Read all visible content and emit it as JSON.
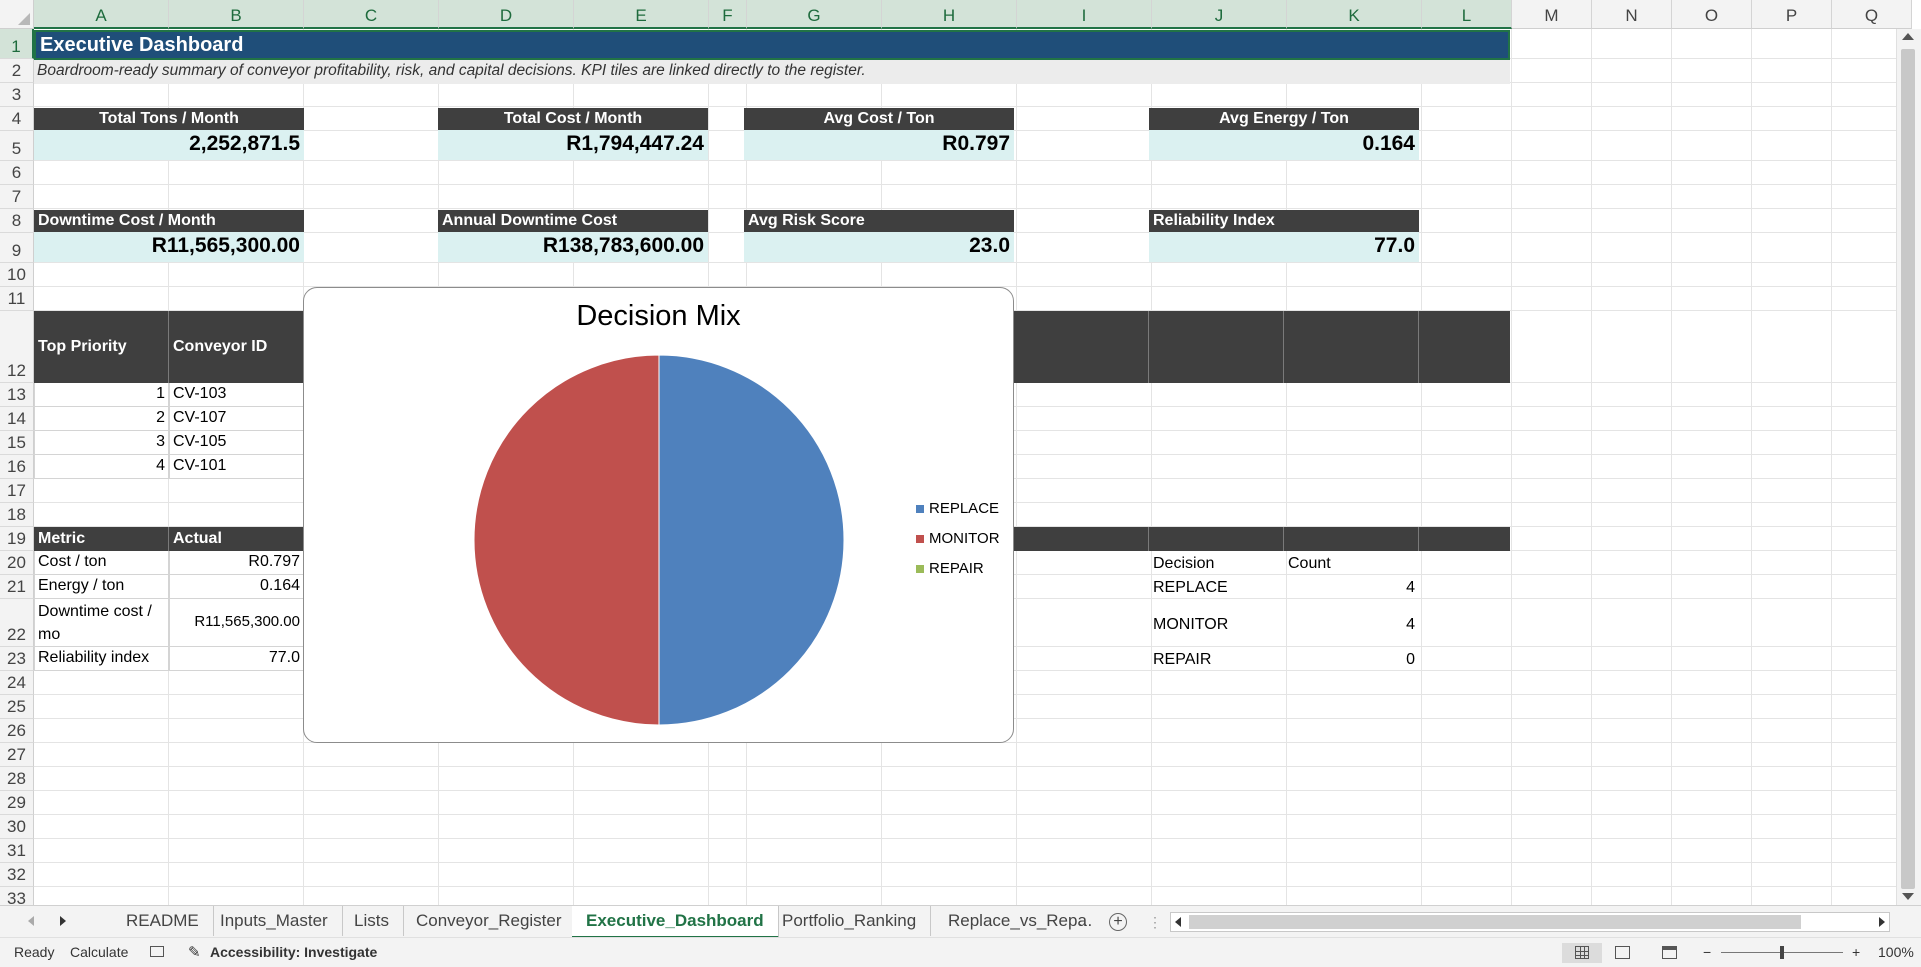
{
  "columns": [
    "A",
    "B",
    "C",
    "D",
    "E",
    "F",
    "G",
    "H",
    "I",
    "J",
    "K",
    "L",
    "M",
    "N",
    "O",
    "P",
    "Q"
  ],
  "rows": [
    "1",
    "2",
    "3",
    "4",
    "5",
    "6",
    "7",
    "8",
    "9",
    "10",
    "11",
    "12",
    "13",
    "14",
    "15",
    "16",
    "17",
    "18",
    "19",
    "20",
    "21",
    "22",
    "23",
    "24",
    "25",
    "26",
    "27",
    "28",
    "29",
    "30",
    "31",
    "32",
    "33"
  ],
  "title": "Executive Dashboard",
  "subtitle": "Boardroom-ready summary of conveyor profitability, risk, and capital decisions. KPI tiles are linked directly to the register.",
  "kpis_row1": [
    {
      "label": "Total Tons / Month",
      "value": "2,252,871.5"
    },
    {
      "label": "Total Cost / Month",
      "value": "R1,794,447.24"
    },
    {
      "label": "Avg Cost / Ton",
      "value": "R0.797"
    },
    {
      "label": "Avg Energy / Ton",
      "value": "0.164"
    }
  ],
  "kpis_row2": [
    {
      "label": "Downtime Cost / Month",
      "value": "R11,565,300.00"
    },
    {
      "label": "Annual Downtime Cost",
      "value": "R138,783,600.00"
    },
    {
      "label": "Avg Risk Score",
      "value": "23.0"
    },
    {
      "label": "Reliability Index",
      "value": "77.0"
    }
  ],
  "priority_table": {
    "headers": [
      "Top Priority",
      "Conveyor ID"
    ],
    "rows": [
      [
        "1",
        "CV-103"
      ],
      [
        "2",
        "CV-107"
      ],
      [
        "3",
        "CV-105"
      ],
      [
        "4",
        "CV-101"
      ]
    ]
  },
  "metric_table": {
    "headers": [
      "Metric",
      "Actual"
    ],
    "rows": [
      [
        "Cost / ton",
        "R0.797"
      ],
      [
        "Energy / ton",
        "0.164"
      ],
      [
        "Downtime cost / mo",
        "R11,565,300.00"
      ],
      [
        "Reliability index",
        "77.0"
      ]
    ]
  },
  "decision_table": {
    "headers": [
      "Decision",
      "Count"
    ],
    "rows": [
      [
        "REPLACE",
        "4"
      ],
      [
        "MONITOR",
        "4"
      ],
      [
        "REPAIR",
        "0"
      ]
    ]
  },
  "chart_data": {
    "type": "pie",
    "title": "Decision Mix",
    "categories": [
      "REPLACE",
      "MONITOR",
      "REPAIR"
    ],
    "values": [
      4,
      4,
      0
    ],
    "colors": [
      "#4f81bd",
      "#c0504d",
      "#9bbb59"
    ],
    "legend_position": "right"
  },
  "sheet_tabs": [
    "README",
    "Inputs_Master",
    "Lists",
    "Conveyor_Register",
    "Executive_Dashboard",
    "Portfolio_Ranking",
    "Replace_vs_Repa"
  ],
  "active_tab": "Executive_Dashboard",
  "more_tabs": "...",
  "status": {
    "ready": "Ready",
    "calculate": "Calculate",
    "accessibility": "Accessibility: Investigate",
    "zoom": "100%"
  }
}
